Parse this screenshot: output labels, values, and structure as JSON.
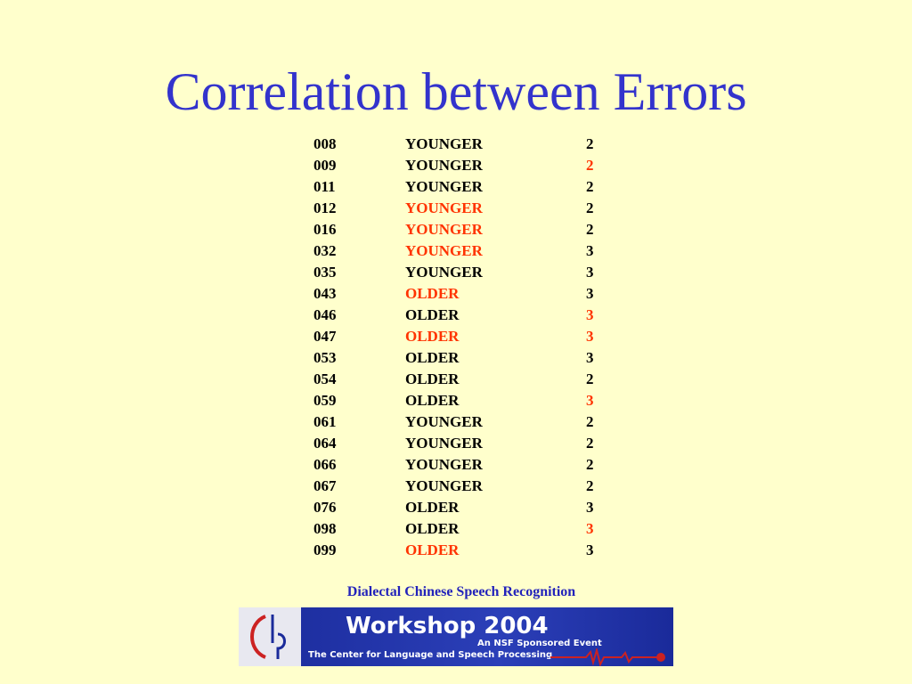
{
  "title": "Correlation between Errors",
  "table": {
    "rows": [
      [
        {
          "text": "008",
          "color": "black"
        },
        {
          "text": "YOUNGER",
          "color": "black"
        },
        {
          "text": "2",
          "color": "black"
        }
      ],
      [
        {
          "text": "009",
          "color": "black"
        },
        {
          "text": "YOUNGER",
          "color": "black"
        },
        {
          "text": "2",
          "color": "red"
        }
      ],
      [
        {
          "text": "011",
          "color": "black"
        },
        {
          "text": "YOUNGER",
          "color": "black"
        },
        {
          "text": "2",
          "color": "black"
        }
      ],
      [
        {
          "text": "012",
          "color": "black"
        },
        {
          "text": "YOUNGER",
          "color": "red"
        },
        {
          "text": "2",
          "color": "black"
        }
      ],
      [
        {
          "text": "016",
          "color": "black"
        },
        {
          "text": "YOUNGER",
          "color": "red"
        },
        {
          "text": "2",
          "color": "black"
        }
      ],
      [
        {
          "text": "032",
          "color": "black"
        },
        {
          "text": "YOUNGER",
          "color": "red"
        },
        {
          "text": "3",
          "color": "black"
        }
      ],
      [
        {
          "text": "035",
          "color": "black"
        },
        {
          "text": "YOUNGER",
          "color": "black"
        },
        {
          "text": "3",
          "color": "black"
        }
      ],
      [
        {
          "text": "043",
          "color": "black"
        },
        {
          "text": "OLDER",
          "color": "red"
        },
        {
          "text": "3",
          "color": "black"
        }
      ],
      [
        {
          "text": "046",
          "color": "black"
        },
        {
          "text": "OLDER",
          "color": "black"
        },
        {
          "text": "3",
          "color": "red"
        }
      ],
      [
        {
          "text": "047",
          "color": "black"
        },
        {
          "text": "OLDER",
          "color": "red"
        },
        {
          "text": "3",
          "color": "red"
        }
      ],
      [
        {
          "text": "053",
          "color": "black"
        },
        {
          "text": "OLDER",
          "color": "black"
        },
        {
          "text": "3",
          "color": "black"
        }
      ],
      [
        {
          "text": "054",
          "color": "black"
        },
        {
          "text": "OLDER",
          "color": "black"
        },
        {
          "text": "2",
          "color": "black"
        }
      ],
      [
        {
          "text": "059",
          "color": "black"
        },
        {
          "text": "OLDER",
          "color": "black"
        },
        {
          "text": "3",
          "color": "red"
        }
      ],
      [
        {
          "text": "061",
          "color": "black"
        },
        {
          "text": "YOUNGER",
          "color": "black"
        },
        {
          "text": "2",
          "color": "black"
        }
      ],
      [
        {
          "text": "064",
          "color": "black"
        },
        {
          "text": "YOUNGER",
          "color": "black"
        },
        {
          "text": "2",
          "color": "black"
        }
      ],
      [
        {
          "text": "066",
          "color": "black"
        },
        {
          "text": "YOUNGER",
          "color": "black"
        },
        {
          "text": "2",
          "color": "black"
        }
      ],
      [
        {
          "text": "067",
          "color": "black"
        },
        {
          "text": "YOUNGER",
          "color": "black"
        },
        {
          "text": "2",
          "color": "black"
        }
      ],
      [
        {
          "text": "076",
          "color": "black"
        },
        {
          "text": "OLDER",
          "color": "black"
        },
        {
          "text": "3",
          "color": "black"
        }
      ],
      [
        {
          "text": "098",
          "color": "black"
        },
        {
          "text": "OLDER",
          "color": "black"
        },
        {
          "text": "3",
          "color": "red"
        }
      ],
      [
        {
          "text": "099",
          "color": "black"
        },
        {
          "text": "OLDER",
          "color": "red"
        },
        {
          "text": "3",
          "color": "black"
        }
      ]
    ]
  },
  "footer": {
    "text": "Dialectal Chinese Speech Recognition",
    "banner": {
      "title": "Workshop 2004",
      "subtitle": "An NSF Sponsored Event",
      "org": "The Center for Language and Speech Processing"
    }
  }
}
